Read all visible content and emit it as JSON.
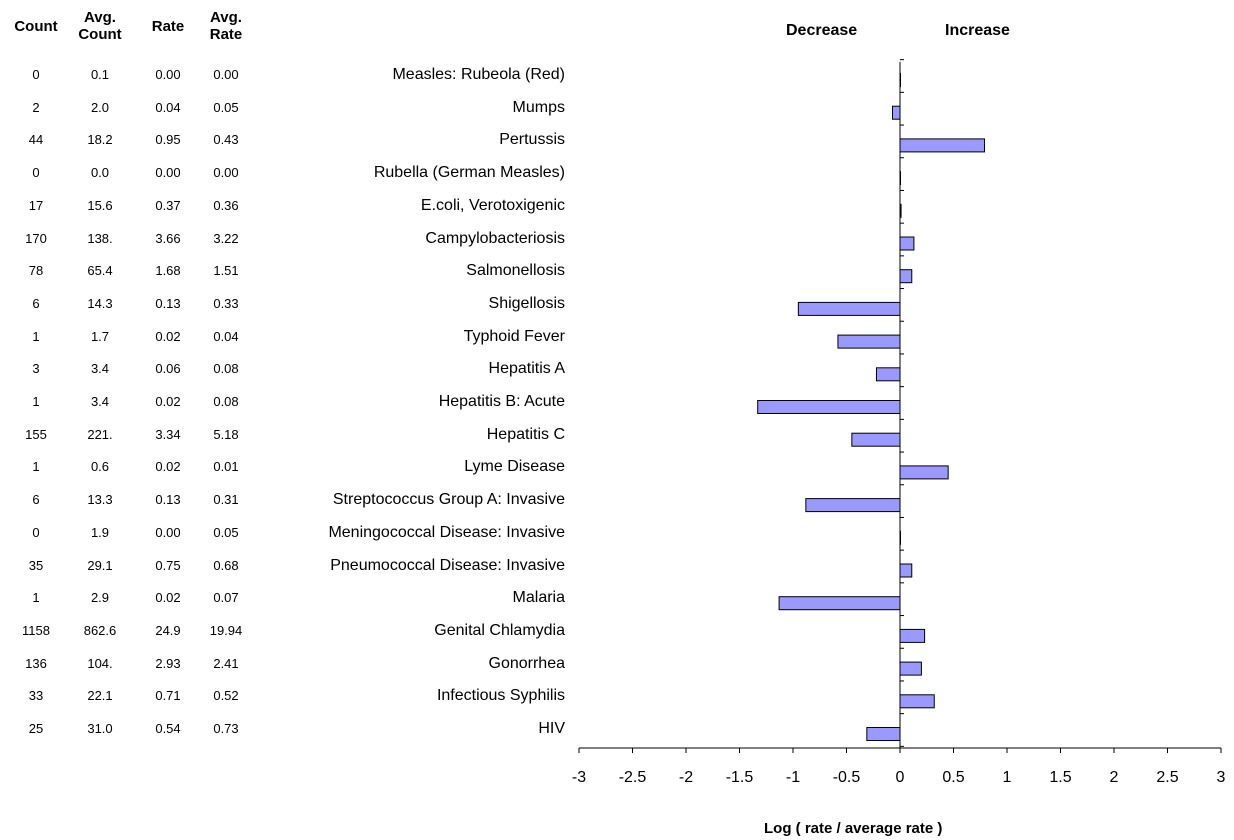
{
  "table": {
    "headers": {
      "count": "Count",
      "avg_count": "Avg. Count",
      "rate": "Rate",
      "avg_rate": "Avg. Rate"
    },
    "rows": [
      {
        "disease": "Measles: Rubeola (Red)",
        "count": "0",
        "avg_count": "0.1",
        "rate": "0.00",
        "avg_rate": "0.00"
      },
      {
        "disease": "Mumps",
        "count": "2",
        "avg_count": "2.0",
        "rate": "0.04",
        "avg_rate": "0.05"
      },
      {
        "disease": "Pertussis",
        "count": "44",
        "avg_count": "18.2",
        "rate": "0.95",
        "avg_rate": "0.43"
      },
      {
        "disease": "Rubella (German Measles)",
        "count": "0",
        "avg_count": "0.0",
        "rate": "0.00",
        "avg_rate": "0.00"
      },
      {
        "disease": "E.coli, Verotoxigenic",
        "count": "17",
        "avg_count": "15.6",
        "rate": "0.37",
        "avg_rate": "0.36"
      },
      {
        "disease": "Campylobacteriosis",
        "count": "170",
        "avg_count": "138.",
        "rate": "3.66",
        "avg_rate": "3.22"
      },
      {
        "disease": "Salmonellosis",
        "count": "78",
        "avg_count": "65.4",
        "rate": "1.68",
        "avg_rate": "1.51"
      },
      {
        "disease": "Shigellosis",
        "count": "6",
        "avg_count": "14.3",
        "rate": "0.13",
        "avg_rate": "0.33"
      },
      {
        "disease": "Typhoid Fever",
        "count": "1",
        "avg_count": "1.7",
        "rate": "0.02",
        "avg_rate": "0.04"
      },
      {
        "disease": "Hepatitis A",
        "count": "3",
        "avg_count": "3.4",
        "rate": "0.06",
        "avg_rate": "0.08"
      },
      {
        "disease": "Hepatitis B: Acute",
        "count": "1",
        "avg_count": "3.4",
        "rate": "0.02",
        "avg_rate": "0.08"
      },
      {
        "disease": "Hepatitis C",
        "count": "155",
        "avg_count": "221.",
        "rate": "3.34",
        "avg_rate": "5.18"
      },
      {
        "disease": "Lyme Disease",
        "count": "1",
        "avg_count": "0.6",
        "rate": "0.02",
        "avg_rate": "0.01"
      },
      {
        "disease": "Streptococcus Group A: Invasive",
        "count": "6",
        "avg_count": "13.3",
        "rate": "0.13",
        "avg_rate": "0.31"
      },
      {
        "disease": "Meningococcal Disease: Invasive",
        "count": "0",
        "avg_count": "1.9",
        "rate": "0.00",
        "avg_rate": "0.05"
      },
      {
        "disease": "Pneumococcal Disease: Invasive",
        "count": "35",
        "avg_count": "29.1",
        "rate": "0.75",
        "avg_rate": "0.68"
      },
      {
        "disease": "Malaria",
        "count": "1",
        "avg_count": "2.9",
        "rate": "0.02",
        "avg_rate": "0.07"
      },
      {
        "disease": "Genital Chlamydia",
        "count": "1158",
        "avg_count": "862.6",
        "rate": "24.9",
        "avg_rate": "19.94"
      },
      {
        "disease": "Gonorrhea",
        "count": "136",
        "avg_count": "104.",
        "rate": "2.93",
        "avg_rate": "2.41"
      },
      {
        "disease": "Infectious Syphilis",
        "count": "33",
        "avg_count": "22.1",
        "rate": "0.71",
        "avg_rate": "0.52"
      },
      {
        "disease": "HIV",
        "count": "25",
        "avg_count": "31.0",
        "rate": "0.54",
        "avg_rate": "0.73"
      }
    ]
  },
  "chart_data": {
    "type": "bar",
    "orientation": "horizontal",
    "categories": [
      "Measles: Rubeola (Red)",
      "Mumps",
      "Pertussis",
      "Rubella (German Measles)",
      "E.coli, Verotoxigenic",
      "Campylobacteriosis",
      "Salmonellosis",
      "Shigellosis",
      "Typhoid Fever",
      "Hepatitis A",
      "Hepatitis B: Acute",
      "Hepatitis C",
      "Lyme Disease",
      "Streptococcus Group A: Invasive",
      "Meningococcal Disease: Invasive",
      "Pneumococcal Disease: Invasive",
      "Malaria",
      "Genital Chlamydia",
      "Gonorrhea",
      "Infectious Syphilis",
      "HIV"
    ],
    "values": [
      0,
      -0.07,
      0.79,
      0,
      0.01,
      0.13,
      0.11,
      -0.95,
      -0.58,
      -0.22,
      -1.33,
      -0.45,
      0.45,
      -0.88,
      0,
      0.11,
      -1.13,
      0.23,
      0.2,
      0.32,
      -0.31
    ],
    "xlabel": "Log ( rate / average rate )",
    "xlim": [
      -3,
      3
    ],
    "xticks": [
      "-3",
      "-2.5",
      "-2",
      "-1.5",
      "-1",
      "-0.5",
      "0",
      "0.5",
      "1",
      "1.5",
      "2",
      "2.5",
      "3"
    ],
    "direction_labels": {
      "negative": "Decrease",
      "positive": "Increase"
    },
    "bar_color": "#9999ff",
    "bar_edge": "#000000",
    "grid": false
  }
}
